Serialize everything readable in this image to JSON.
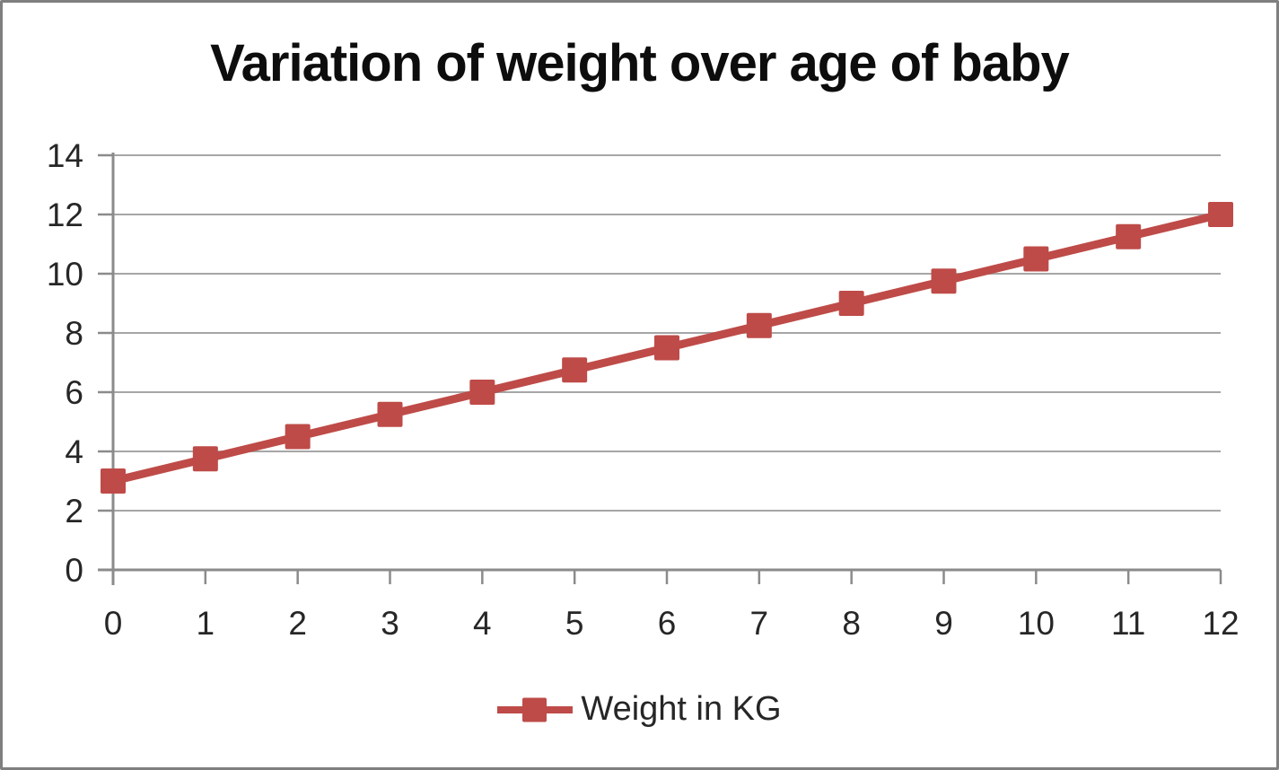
{
  "chart_data": {
    "type": "line",
    "title": "Variation of weight over age of baby",
    "x": [
      0,
      1,
      2,
      3,
      4,
      5,
      6,
      7,
      8,
      9,
      10,
      11,
      12
    ],
    "series": [
      {
        "name": "Weight in KG",
        "values": [
          3,
          3.75,
          4.5,
          5.25,
          6,
          6.75,
          7.5,
          8.25,
          9,
          9.75,
          10.5,
          11.25,
          12
        ]
      }
    ],
    "xlabel": "",
    "ylabel": "",
    "xlim": [
      0,
      12
    ],
    "ylim": [
      0,
      14
    ],
    "yticks": [
      0,
      2,
      4,
      6,
      8,
      10,
      12,
      14
    ],
    "grid": true,
    "legend_position": "bottom",
    "marker": "square",
    "colors": {
      "series": "#BE4B48",
      "gridline": "#A6A6A6",
      "axis": "#8B8B8B",
      "tick_text": "#262626",
      "title_text": "#0D0D0D",
      "frame_border": "#7F7F7F",
      "background": "#FFFFFF"
    }
  }
}
